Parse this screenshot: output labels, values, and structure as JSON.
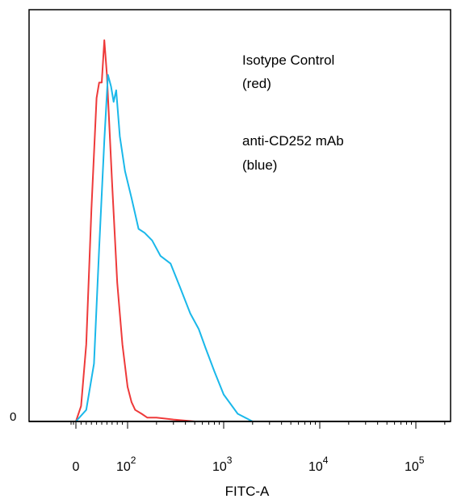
{
  "chart_data": {
    "type": "line",
    "xlabel": "FITC-A",
    "x_scale": "biexponential",
    "xlim": [
      -20,
      200000
    ],
    "ylim": [
      0,
      1
    ],
    "x_ticks": [
      {
        "value": 0,
        "base": "0",
        "exp": ""
      },
      {
        "value": 100,
        "base": "10",
        "exp": "2"
      },
      {
        "value": 1000,
        "base": "10",
        "exp": "3"
      },
      {
        "value": 10000,
        "base": "10",
        "exp": "4"
      },
      {
        "value": 100000,
        "base": "10",
        "exp": "5"
      }
    ],
    "y_ticks": [
      {
        "value": 0,
        "label": "0"
      }
    ],
    "legend": [
      "Isotype Control",
      "(red)",
      "anti-CD252 mAb",
      "(blue)"
    ],
    "legend_placement": "top-right",
    "grid": false,
    "series": [
      {
        "name": "Isotype Control",
        "color": "#ee3a3a",
        "x": [
          0,
          10,
          20,
          30,
          40,
          45,
          50,
          55,
          60,
          65,
          70,
          80,
          90,
          100,
          110,
          120,
          140,
          160,
          200,
          300,
          500
        ],
        "y": [
          0.0,
          0.04,
          0.2,
          0.55,
          0.84,
          0.88,
          0.88,
          0.99,
          0.9,
          0.76,
          0.62,
          0.36,
          0.2,
          0.09,
          0.05,
          0.03,
          0.02,
          0.01,
          0.01,
          0.005,
          0.0
        ]
      },
      {
        "name": "anti-CD252 mAb",
        "color": "#1ab8ea",
        "x": [
          0,
          20,
          35,
          45,
          55,
          62,
          68,
          73,
          78,
          85,
          95,
          110,
          130,
          150,
          180,
          220,
          280,
          350,
          450,
          550,
          650,
          800,
          1000,
          1400,
          2000
        ],
        "y": [
          0.0,
          0.03,
          0.15,
          0.45,
          0.73,
          0.9,
          0.87,
          0.83,
          0.86,
          0.74,
          0.65,
          0.58,
          0.5,
          0.49,
          0.47,
          0.43,
          0.41,
          0.35,
          0.28,
          0.24,
          0.19,
          0.13,
          0.07,
          0.02,
          0.0
        ]
      }
    ]
  }
}
